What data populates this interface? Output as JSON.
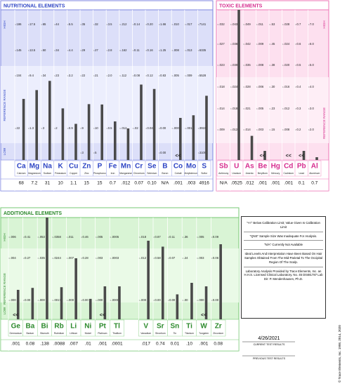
{
  "nutritional": {
    "title": "NUTRITIONAL ELEMENTS",
    "axis": {
      "high": "HIGH",
      "range": "REFERENCE RANGE",
      "low": "LOW"
    },
    "columns": [
      {
        "symbol": "Ca",
        "name": "Calcium",
        "result": "68",
        "scale": [
          "186",
          "145",
          "104",
          "22"
        ]
      },
      {
        "symbol": "Mg",
        "name": "Magnesium",
        "result": "7.2",
        "scale": [
          "17.5",
          "13.5",
          "9.4",
          "1.3"
        ]
      },
      {
        "symbol": "Na",
        "name": "Sodium",
        "result": "31",
        "scale": [
          "65",
          "50",
          "34",
          "3"
        ]
      },
      {
        "symbol": "K",
        "name": "Potassium",
        "result": "10",
        "scale": [
          "44",
          "34",
          "23",
          "2"
        ]
      },
      {
        "symbol": "Cu",
        "name": "Copper",
        "result": "1.1",
        "scale": [
          "5.5",
          "4.4",
          "3.2",
          "0.9"
        ]
      },
      {
        "symbol": "Zn",
        "name": "Zinc",
        "result": "15",
        "scale": [
          "35",
          "29",
          "22",
          "9"
        ],
        "bottom": "3"
      },
      {
        "symbol": "P",
        "name": "Phosphorus",
        "result": "15",
        "scale": [
          "32",
          "27",
          "21",
          "10"
        ],
        "bottom": "5"
      },
      {
        "symbol": "Fe",
        "name": "Iron",
        "result": "0.7",
        "scale": [
          "3.5",
          "2.8",
          "2.0",
          "0.5"
        ]
      },
      {
        "symbol": "Mn",
        "name": "Manganese",
        "result": ".012",
        "scale": [
          ".212",
          ".162",
          ".112",
          ".012"
        ]
      },
      {
        "symbol": "Cr",
        "name": "Chromium",
        "result": "0.07",
        "scale": [
          "0.14",
          "0.11",
          "0.08",
          ".02"
        ]
      },
      {
        "symbol": "Se",
        "name": "Selenium",
        "result": "0.10",
        "scale": [
          "0.20",
          "0.16",
          "0.12",
          "0.04"
        ]
      },
      {
        "symbol": "B",
        "name": "Boron",
        "result": "N/A",
        "scale": [
          "1.66",
          "1.25",
          "0.83",
          "0.00"
        ],
        "bottom": "0.00"
      },
      {
        "symbol": "Co",
        "name": "Cobalt",
        "result": ".001",
        "scale": [
          ".010",
          ".008",
          ".005",
          ".000"
        ],
        "flag": "<<"
      },
      {
        "symbol": "Mo",
        "name": "Molybdenum",
        "result": ".003",
        "scale": [
          ".017",
          ".013",
          ".009",
          ".001"
        ]
      },
      {
        "symbol": "S",
        "name": "Sulfur",
        "result": "4916",
        "scale": [
          "7141",
          "6335",
          "5528",
          "3915"
        ],
        "bottom": "3109"
      }
    ]
  },
  "toxic": {
    "title": "TOXIC ELEMENTS",
    "axis": {
      "high": "HIGH",
      "range": "REFERENCE RANGE"
    },
    "columns": [
      {
        "symbol": "Sb",
        "name": "Antimony",
        "result": "N/A",
        "scale": [
          ".032",
          ".027",
          ".023",
          ".018",
          ".014",
          ".009"
        ]
      },
      {
        "symbol": "U",
        "name": "Uranium",
        "result": ".0525",
        "scale": [
          ".0431",
          ".0369",
          ".0308",
          ".0246",
          ".0185",
          ".0123"
        ]
      },
      {
        "symbol": "As",
        "name": "Arsenic",
        "result": ".012",
        "scale": [
          ".049",
          ".042",
          ".035",
          ".028",
          ".021",
          ".014"
        ]
      },
      {
        "symbol": "Be",
        "name": "Beryllium",
        "result": ".001",
        "scale": [
          ".011",
          ".009",
          ".008",
          ".006",
          ".005",
          ".003"
        ],
        "flag": "<<"
      },
      {
        "symbol": "Hg",
        "name": "Mercury",
        "result": ".001",
        "scale": [
          ".53",
          ".45",
          ".38",
          ".30",
          ".23",
          ".15"
        ]
      },
      {
        "symbol": "Cd",
        "name": "Cadmium",
        "result": ".001",
        "scale": [
          ".028",
          ".024",
          ".020",
          ".016",
          ".012",
          ".008"
        ],
        "flag": "<<"
      },
      {
        "symbol": "Pb",
        "name": "Lead",
        "result": "0.1",
        "scale": [
          "0.7",
          "0.6",
          "0.5",
          "0.4",
          "0.3",
          "0.2"
        ],
        "flag": "<<"
      },
      {
        "symbol": "Al",
        "name": "Aluminum",
        "result": "0.7",
        "scale": [
          "7.0",
          "6.0",
          "5.0",
          "4.0",
          "3.0",
          "2.0"
        ]
      }
    ]
  },
  "additional": {
    "title": "ADDITIONAL ELEMENTS",
    "axis": {
      "high": "HIGH",
      "range": "REFERENCE RANGE",
      "low": "LOW"
    },
    "columns": [
      {
        "symbol": "Ge",
        "name": "Germanium",
        "result": ".001",
        "scale": [
          ".006",
          ".004",
          ".000"
        ],
        "flag": "<<"
      },
      {
        "symbol": "Ba",
        "name": "Barium",
        "result": "0.08",
        "scale": [
          "0.41",
          "0.27",
          "0.00"
        ]
      },
      {
        "symbol": "Bi",
        "name": "Bismuth",
        "result": ".138",
        "scale": [
          ".053",
          ".035",
          ".000"
        ]
      },
      {
        "symbol": "Rb",
        "name": "Rubidium",
        "result": ".0088",
        "scale": [
          ".0358",
          ".0244",
          ".0017"
        ]
      },
      {
        "symbol": "Li",
        "name": "Lithium",
        "result": ".007",
        "scale": [
          ".011",
          ".007",
          ".000"
        ]
      },
      {
        "symbol": "Ni",
        "name": "Nickel",
        "result": ".01",
        "scale": [
          "0.46",
          "0.28",
          "0.00"
        ]
      },
      {
        "symbol": "Pt",
        "name": "Platinum",
        "result": ".001",
        "scale": [
          ".005",
          ".003",
          ".000"
        ],
        "flag": "<<"
      },
      {
        "symbol": "Tl",
        "name": "Thallium",
        "result": ".0001",
        "scale": [
          ".0005",
          ".0003",
          ".0000"
        ]
      },
      {
        "symbol": "V",
        "name": "Vanadium",
        "result": ".017",
        "scale": [
          ".018",
          ".012",
          ".000"
        ]
      },
      {
        "symbol": "Sr",
        "name": "Strontium",
        "result": "0.74",
        "scale": [
          "0.87",
          "0.58",
          "0.00"
        ]
      },
      {
        "symbol": "Sn",
        "name": "Tin",
        "result": "0.01",
        "scale": [
          "0.11",
          "0.07",
          "0.00"
        ]
      },
      {
        "symbol": "Ti",
        "name": "Titanium",
        "result": ".10",
        "scale": [
          ".36",
          ".24",
          ".00"
        ]
      },
      {
        "symbol": "W",
        "name": "Tungsten",
        "result": ".001",
        "scale": [
          ".005",
          ".003",
          ".000"
        ],
        "flag": "<<"
      },
      {
        "symbol": "Zr",
        "name": "Zirconium",
        "result": "0.08",
        "scale": [
          "0.09",
          "0.06",
          "0.00"
        ]
      }
    ]
  },
  "notes": [
    "\"<<\" Below Calibration Limit; Value Given Is Calibration Limit",
    "\"QNS\" Sample Size Was Inadequate For Analysis.",
    "\"N/A\" Currently Not Available",
    "Ideal Levels And Interpretation Have Been Based On Hair Samples Obtained From The Mid-Parietal To The Occipital Region Of The Scalp.",
    "Laboratory Analysis Provided by Trace Elements, Inc. an H.H.S. Licensed Clinical Laboratory. No. 45 D0481787 Lab Dir: P. Mendenhausen, Ph.D."
  ],
  "date": "4/26/2021",
  "current_label": "CURRENT TEST RESULTS",
  "previous_label": "PREVIOUS TEST RESULTS",
  "copyright": "© Trace Elements, Inc. 1998, 2014, 2020"
}
